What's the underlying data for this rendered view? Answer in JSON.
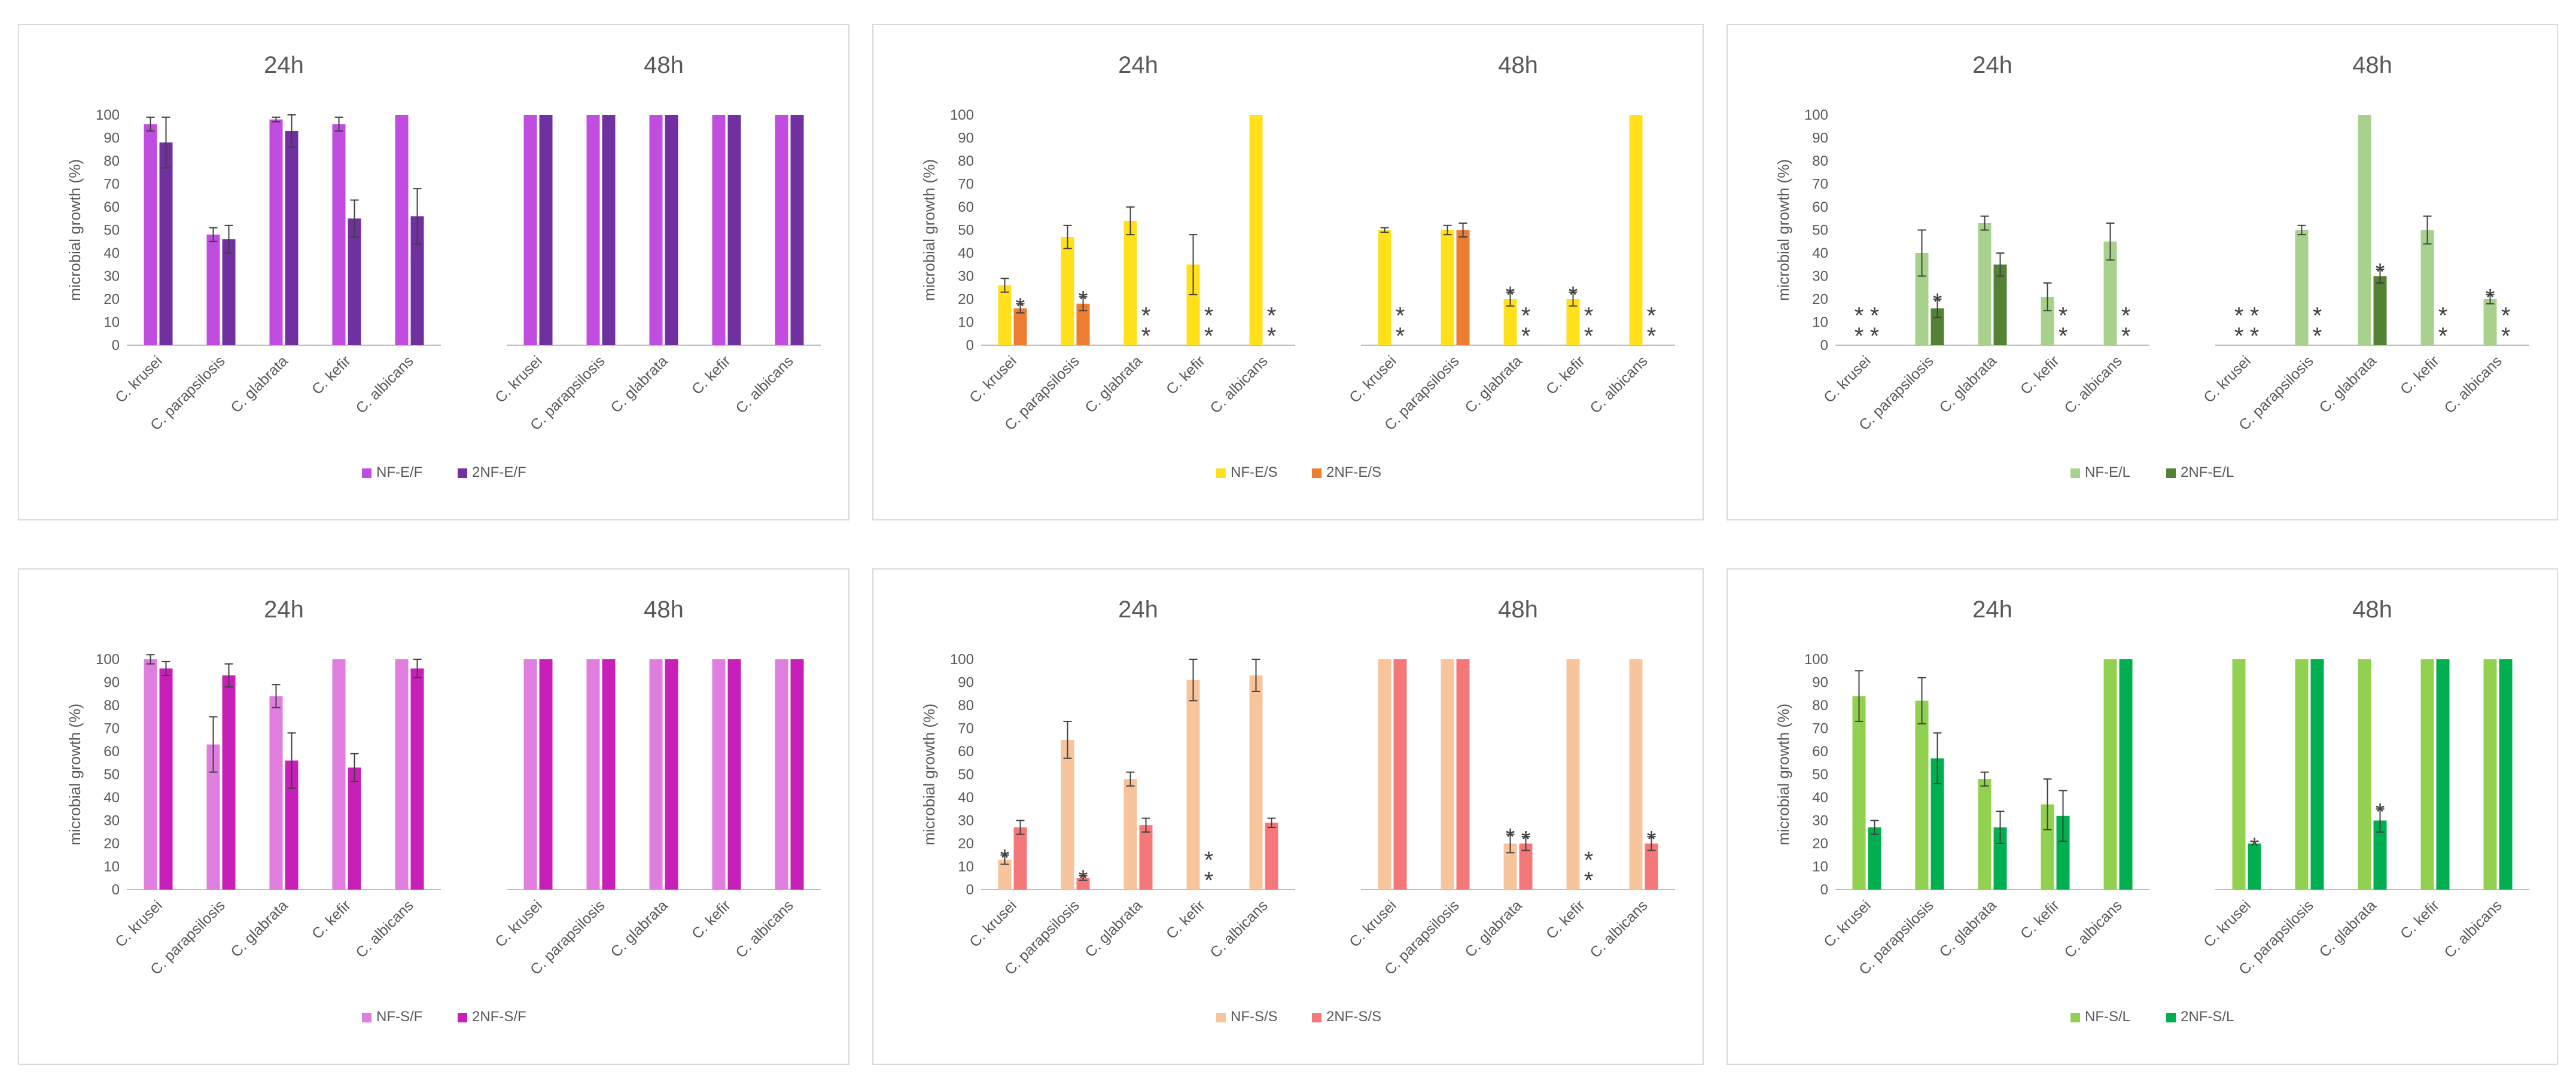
{
  "chart_data": [
    {
      "type": "bar",
      "ylabel": "microbial growth (%)",
      "ylim": [
        0,
        100
      ],
      "yticks": [
        0,
        10,
        20,
        30,
        40,
        50,
        60,
        70,
        80,
        90,
        100
      ],
      "group_titles": [
        "24h",
        "48h"
      ],
      "categories": [
        "C. krusei",
        "C. parapsilosis",
        "C. glabrata",
        "C. kefir",
        "C. albicans"
      ],
      "series": [
        {
          "name": "NF-E/F",
          "color": "#c04ce0",
          "values": [
            [
              96,
              48,
              98,
              96,
              100
            ],
            [
              100,
              100,
              100,
              100,
              100
            ]
          ],
          "errors": [
            [
              3,
              3,
              1,
              3,
              0
            ],
            [
              0,
              0,
              0,
              0,
              0
            ]
          ],
          "annotations": [
            [
              "",
              "",
              "",
              "",
              ""
            ],
            [
              "",
              "",
              "",
              "",
              ""
            ]
          ]
        },
        {
          "name": "2NF-E/F",
          "color": "#7030a0",
          "values": [
            [
              88,
              46,
              93,
              55,
              56
            ],
            [
              100,
              100,
              100,
              100,
              100
            ]
          ],
          "errors": [
            [
              11,
              6,
              7,
              8,
              12
            ],
            [
              0,
              0,
              0,
              0,
              0
            ]
          ],
          "annotations": [
            [
              "",
              "",
              "",
              "",
              ""
            ],
            [
              "",
              "",
              "",
              "",
              ""
            ]
          ]
        }
      ]
    },
    {
      "type": "bar",
      "ylabel": "microbial growth (%)",
      "ylim": [
        0,
        100
      ],
      "yticks": [
        0,
        10,
        20,
        30,
        40,
        50,
        60,
        70,
        80,
        90,
        100
      ],
      "group_titles": [
        "24h",
        "48h"
      ],
      "categories": [
        "C. krusei",
        "C. parapsilosis",
        "C. glabrata",
        "C. kefir",
        "C. albicans"
      ],
      "series": [
        {
          "name": "NF-E/S",
          "color": "#ffe01a",
          "values": [
            [
              26,
              47,
              54,
              35,
              100
            ],
            [
              50,
              50,
              20,
              20,
              100
            ]
          ],
          "errors": [
            [
              3,
              5,
              6,
              13,
              0
            ],
            [
              1,
              2,
              3,
              3,
              0
            ]
          ],
          "annotations": [
            [
              "",
              "",
              "",
              "",
              ""
            ],
            [
              "",
              "",
              "*",
              "*",
              ""
            ]
          ]
        },
        {
          "name": "2NF-E/S",
          "color": "#ed7d31",
          "values": [
            [
              16,
              18,
              0,
              0,
              0
            ],
            [
              0,
              50,
              0,
              0,
              0
            ]
          ],
          "errors": [
            [
              2,
              3,
              0,
              0,
              0
            ],
            [
              0,
              3,
              0,
              0,
              0
            ]
          ],
          "annotations": [
            [
              "*",
              "*",
              "**",
              "**",
              "**"
            ],
            [
              "**",
              "",
              "**",
              "**",
              "**"
            ]
          ]
        }
      ]
    },
    {
      "type": "bar",
      "ylabel": "microbial growth (%)",
      "ylim": [
        0,
        100
      ],
      "yticks": [
        0,
        10,
        20,
        30,
        40,
        50,
        60,
        70,
        80,
        90,
        100
      ],
      "group_titles": [
        "24h",
        "48h"
      ],
      "categories": [
        "C. krusei",
        "C. parapsilosis",
        "C. glabrata",
        "C. kefir",
        "C. albicans"
      ],
      "series": [
        {
          "name": "NF-E/L",
          "color": "#a9d18e",
          "values": [
            [
              0,
              40,
              53,
              21,
              45
            ],
            [
              0,
              50,
              100,
              50,
              20
            ]
          ],
          "errors": [
            [
              0,
              10,
              3,
              6,
              8
            ],
            [
              0,
              2,
              0,
              6,
              2
            ]
          ],
          "annotations": [
            [
              "**",
              "",
              "",
              "",
              ""
            ],
            [
              "**",
              "",
              "",
              "",
              "*"
            ]
          ]
        },
        {
          "name": "2NF-E/L",
          "color": "#548235",
          "values": [
            [
              0,
              16,
              35,
              0,
              0
            ],
            [
              0,
              0,
              30,
              0,
              0
            ]
          ],
          "errors": [
            [
              0,
              4,
              5,
              0,
              0
            ],
            [
              0,
              0,
              3,
              0,
              0
            ]
          ],
          "annotations": [
            [
              "**",
              "*",
              "",
              "**",
              "**"
            ],
            [
              "**",
              "**",
              "*",
              "**",
              "**"
            ]
          ]
        }
      ]
    },
    {
      "type": "bar",
      "ylabel": "microbial growth (%)",
      "ylim": [
        0,
        100
      ],
      "yticks": [
        0,
        10,
        20,
        30,
        40,
        50,
        60,
        70,
        80,
        90,
        100
      ],
      "group_titles": [
        "24h",
        "48h"
      ],
      "categories": [
        "C. krusei",
        "C. parapsilosis",
        "C. glabrata",
        "C. kefir",
        "C. albicans"
      ],
      "series": [
        {
          "name": "NF-S/F",
          "color": "#e07ee0",
          "values": [
            [
              100,
              63,
              84,
              100,
              100
            ],
            [
              100,
              100,
              100,
              100,
              100
            ]
          ],
          "errors": [
            [
              2,
              12,
              5,
              0,
              0
            ],
            [
              0,
              0,
              0,
              0,
              0
            ]
          ],
          "annotations": [
            [
              "",
              "",
              "",
              "",
              ""
            ],
            [
              "",
              "",
              "",
              "",
              ""
            ]
          ]
        },
        {
          "name": "2NF-S/F",
          "color": "#c71fb8",
          "values": [
            [
              96,
              93,
              56,
              53,
              96
            ],
            [
              100,
              100,
              100,
              100,
              100
            ]
          ],
          "errors": [
            [
              3,
              5,
              12,
              6,
              4
            ],
            [
              0,
              0,
              0,
              0,
              0
            ]
          ],
          "annotations": [
            [
              "",
              "",
              "",
              "",
              ""
            ],
            [
              "",
              "",
              "",
              "",
              ""
            ]
          ]
        }
      ]
    },
    {
      "type": "bar",
      "ylabel": "microbial growth (%)",
      "ylim": [
        0,
        100
      ],
      "yticks": [
        0,
        10,
        20,
        30,
        40,
        50,
        60,
        70,
        80,
        90,
        100
      ],
      "group_titles": [
        "24h",
        "48h"
      ],
      "categories": [
        "C. krusei",
        "C. parapsilosis",
        "C. glabrata",
        "C. kefir",
        "C. albicans"
      ],
      "series": [
        {
          "name": "NF-S/S",
          "color": "#f8c49c",
          "values": [
            [
              13,
              65,
              48,
              91,
              93
            ],
            [
              100,
              100,
              20,
              100,
              100
            ]
          ],
          "errors": [
            [
              2,
              8,
              3,
              9,
              7
            ],
            [
              0,
              0,
              4,
              0,
              0
            ]
          ],
          "annotations": [
            [
              "*",
              "",
              "",
              "",
              ""
            ],
            [
              "",
              "",
              "*",
              "",
              ""
            ]
          ]
        },
        {
          "name": "2NF-S/S",
          "color": "#f4777a",
          "values": [
            [
              27,
              5,
              28,
              0,
              29
            ],
            [
              100,
              100,
              20,
              0,
              20
            ]
          ],
          "errors": [
            [
              3,
              1,
              3,
              0,
              2
            ],
            [
              0,
              0,
              3,
              0,
              3
            ]
          ],
          "annotations": [
            [
              "",
              "*",
              "",
              "**",
              ""
            ],
            [
              "",
              "",
              "*",
              "**",
              "*"
            ]
          ]
        }
      ]
    },
    {
      "type": "bar",
      "ylabel": "microbial growth (%)",
      "ylim": [
        0,
        100
      ],
      "yticks": [
        0,
        10,
        20,
        30,
        40,
        50,
        60,
        70,
        80,
        90,
        100
      ],
      "group_titles": [
        "24h",
        "48h"
      ],
      "categories": [
        "C. krusei",
        "C. parapsilosis",
        "C. glabrata",
        "C. kefir",
        "C. albicans"
      ],
      "series": [
        {
          "name": "NF-S/L",
          "color": "#92d050",
          "values": [
            [
              84,
              82,
              48,
              37,
              100
            ],
            [
              100,
              100,
              100,
              100,
              100
            ]
          ],
          "errors": [
            [
              11,
              10,
              3,
              11,
              0
            ],
            [
              0,
              0,
              0,
              0,
              0
            ]
          ],
          "annotations": [
            [
              "",
              "",
              "",
              "",
              ""
            ],
            [
              "",
              "",
              "",
              "",
              ""
            ]
          ]
        },
        {
          "name": "2NF-S/L",
          "color": "#00b050",
          "values": [
            [
              27,
              57,
              27,
              32,
              100
            ],
            [
              20,
              100,
              30,
              100,
              100
            ]
          ],
          "errors": [
            [
              3,
              11,
              7,
              11,
              0
            ],
            [
              0,
              0,
              5,
              0,
              0
            ]
          ],
          "annotations": [
            [
              "",
              "",
              "",
              "",
              ""
            ],
            [
              "*",
              "",
              "*",
              "",
              ""
            ]
          ]
        }
      ]
    }
  ]
}
